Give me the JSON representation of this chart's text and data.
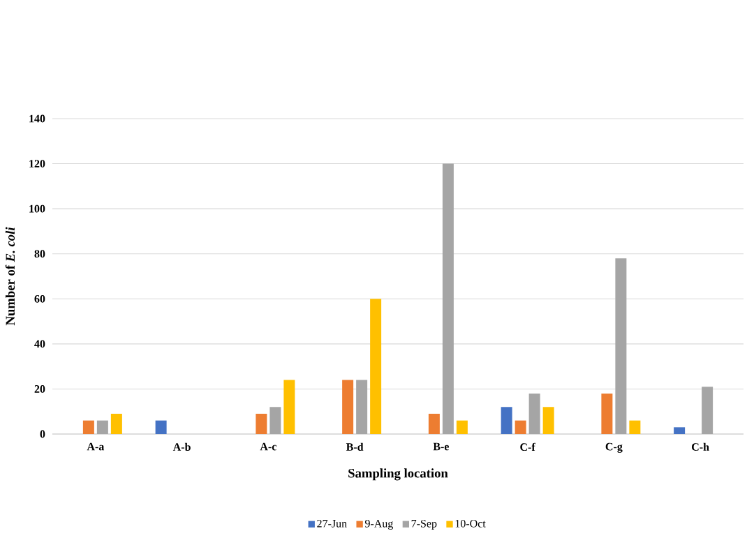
{
  "chart_data": {
    "type": "bar",
    "xlabel": "Sampling location",
    "ylabel": "Number of *E. coli*",
    "categories": [
      "A-a",
      "A-b",
      "A-c",
      "B-d",
      "B-e",
      "C-f",
      "C-g",
      "C-h"
    ],
    "series": [
      {
        "name": "27-Jun",
        "color": "#4472c4",
        "values": [
          0,
          6,
          0,
          0,
          0,
          12,
          0,
          3
        ]
      },
      {
        "name": "9-Aug",
        "color": "#ed7d31",
        "values": [
          6,
          0,
          9,
          24,
          9,
          6,
          18,
          0
        ]
      },
      {
        "name": "7-Sep",
        "color": "#a5a5a5",
        "values": [
          6,
          0,
          12,
          24,
          120,
          18,
          78,
          21
        ]
      },
      {
        "name": "10-Oct",
        "color": "#ffc000",
        "values": [
          9,
          0,
          24,
          60,
          6,
          12,
          6,
          0
        ]
      }
    ],
    "ylim": [
      0,
      140
    ],
    "yticks": [
      0,
      20,
      40,
      60,
      80,
      100,
      120,
      140
    ],
    "grid": "y",
    "legend": "bottom"
  }
}
